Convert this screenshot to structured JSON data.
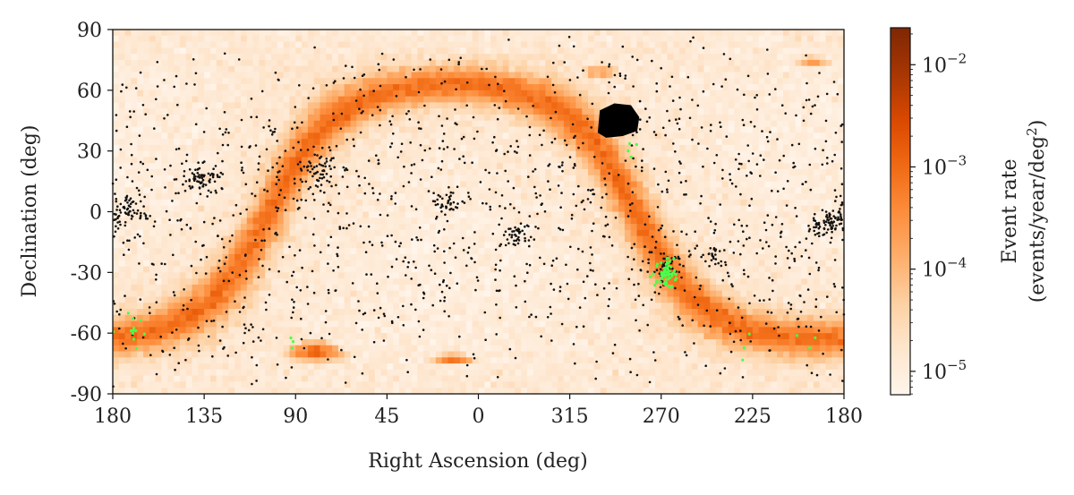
{
  "chart_data": {
    "type": "heatmap",
    "projection": "equirectangular sky map",
    "xlabel": "Right Ascension (deg)",
    "ylabel": "Declination (deg)",
    "x_ticks": [
      "180",
      "135",
      "90",
      "45",
      "0",
      "315",
      "270",
      "225",
      "180"
    ],
    "x_tick_values": [
      180,
      135,
      90,
      45,
      0,
      315,
      270,
      225,
      180
    ],
    "y_ticks": [
      "90",
      "60",
      "30",
      "0",
      "-30",
      "-60",
      "-90"
    ],
    "y_tick_values": [
      90,
      60,
      30,
      0,
      -30,
      -60,
      -90
    ],
    "xlim": [
      180,
      -180
    ],
    "ylim": [
      -90,
      90
    ],
    "colorbar": {
      "label_line1": "Event rate",
      "label_line2": "(events/year/deg",
      "label_sup": "2",
      "label_end": ")",
      "scale": "log",
      "range": [
        5.9e-06,
        0.023
      ],
      "ticks": [
        {
          "value": 1e-05,
          "base": "10",
          "exp": "−5"
        },
        {
          "value": 0.0001,
          "base": "10",
          "exp": "−4"
        },
        {
          "value": 0.001,
          "base": "10",
          "exp": "−3"
        },
        {
          "value": 0.01,
          "base": "10",
          "exp": "−2"
        }
      ],
      "colormap": [
        "#fff5eb",
        "#fee6ce",
        "#fdd0a2",
        "#fdae6b",
        "#fd8d3c",
        "#f16913",
        "#d94801",
        "#a63603",
        "#7f2704"
      ]
    },
    "rate_model": {
      "background_log10": -5.0,
      "galactic_plane_peak_log10": -3.3,
      "plane_width_deg": 9,
      "galactic_pole_ra": 192.86,
      "galactic_pole_dec": 27.13,
      "hotspots": [
        {
          "name": "LMC",
          "ra": 80,
          "dec": -69,
          "peak_log10": -3.0,
          "size": 4
        },
        {
          "name": "SMC",
          "ra": 13,
          "dec": -73,
          "peak_log10": -3.3,
          "size": 2.5
        },
        {
          "ra": 300,
          "dec": 69,
          "peak_log10": -3.6,
          "size": 3
        },
        {
          "ra": 195,
          "dec": 74,
          "peak_log10": -3.7,
          "size": 2.5
        }
      ]
    },
    "black_points": {
      "count_scatter": 1300,
      "clusters": [
        {
          "ra": 136,
          "dec": 16,
          "n": 70,
          "spread": 5
        },
        {
          "ra": 173,
          "dec": 1,
          "n": 60,
          "spread": 5
        },
        {
          "ra": 77,
          "dec": 20,
          "n": 60,
          "spread": 6
        },
        {
          "ra": 15,
          "dec": 4,
          "n": 35,
          "spread": 3
        },
        {
          "ra": 340,
          "dec": -12,
          "n": 35,
          "spread": 4
        },
        {
          "ra": 190,
          "dec": -7,
          "n": 40,
          "spread": 4
        },
        {
          "ra": 184,
          "dec": -4,
          "n": 40,
          "spread": 3
        },
        {
          "ra": 245,
          "dec": -22,
          "n": 25,
          "spread": 4
        },
        {
          "ra": 268,
          "dec": -28,
          "n": 40,
          "spread": 4
        }
      ],
      "kepler_field": {
        "ra": 291,
        "dec": 45,
        "size": 8
      }
    },
    "green_points": [
      {
        "ra": 268,
        "dec": -30,
        "n": 60,
        "spread": 2.5
      },
      {
        "ra": 284,
        "dec": 31,
        "n": 4,
        "spread": 2
      },
      {
        "ra": 170,
        "dec": -62,
        "n": 12,
        "spread": 4
      },
      {
        "ra": 90,
        "dec": -68,
        "n": 3,
        "spread": 2
      },
      {
        "ra": 228,
        "dec": -64,
        "n": 3,
        "spread": 3
      },
      {
        "ra": 198,
        "dec": -62,
        "n": 3,
        "spread": 3
      }
    ]
  }
}
